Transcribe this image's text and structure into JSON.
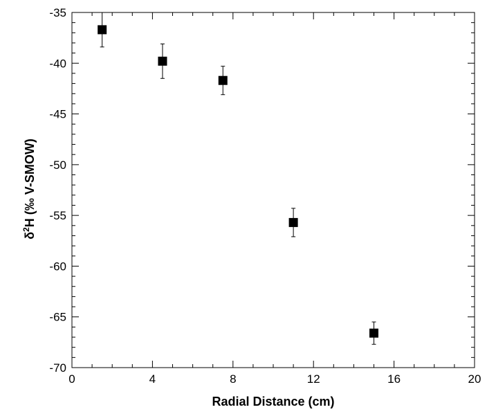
{
  "chart_data": {
    "type": "scatter",
    "title": "",
    "xlabel": "Radial Distance (cm)",
    "ylabel_prefix": "δ",
    "ylabel_sup": "2",
    "ylabel_suffix": "H (‰ V-SMOW)",
    "xlim": [
      0,
      20
    ],
    "ylim": [
      -70,
      -35
    ],
    "x_ticks": [
      0,
      4,
      8,
      12,
      16,
      20
    ],
    "x_tick_labels": [
      "0",
      "4",
      "8",
      "12",
      "16",
      "20"
    ],
    "x_minor_step": 1,
    "y_ticks": [
      -35,
      -40,
      -45,
      -50,
      -55,
      -60,
      -65,
      -70
    ],
    "y_tick_labels": [
      "-35",
      "-40",
      "-45",
      "-50",
      "-55",
      "-60",
      "-65",
      "-70"
    ],
    "y_minor_step": 1,
    "grid": false,
    "marker": "filled-square",
    "marker_color": "#000000",
    "points": [
      {
        "x": 1.5,
        "y": -36.7,
        "err": 1.7
      },
      {
        "x": 4.5,
        "y": -39.8,
        "err": 1.7
      },
      {
        "x": 7.5,
        "y": -41.7,
        "err": 1.4
      },
      {
        "x": 11.0,
        "y": -55.7,
        "err": 1.4
      },
      {
        "x": 15.0,
        "y": -66.6,
        "err": 1.1
      }
    ]
  }
}
